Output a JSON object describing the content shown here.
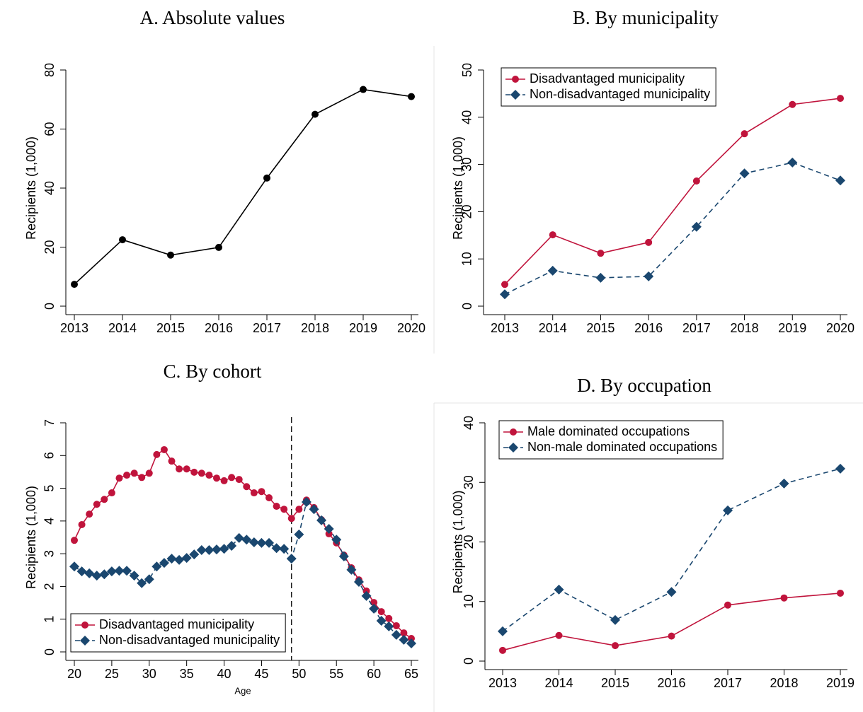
{
  "chart_data": [
    {
      "type": "line",
      "title": "A. Absolute values",
      "ylabel": "Recipients (1,000)",
      "x": [
        2013,
        2014,
        2015,
        2016,
        2017,
        2018,
        2019,
        2020
      ],
      "values": [
        7.4,
        22.5,
        17.3,
        19.9,
        43.4,
        65.0,
        73.4,
        71.0
      ],
      "color": "#000000",
      "marker": "circle",
      "linestyle": "solid",
      "xlim": [
        2013,
        2020
      ],
      "xticks": [
        2013,
        2014,
        2015,
        2016,
        2017,
        2018,
        2019,
        2020
      ],
      "ylim": [
        0,
        80
      ],
      "yticks": [
        0,
        20,
        40,
        60,
        80
      ]
    },
    {
      "type": "line",
      "title": "B. By municipality",
      "ylabel": "Recipients (1,000)",
      "x": [
        2013,
        2014,
        2015,
        2016,
        2017,
        2018,
        2019,
        2020
      ],
      "series": [
        {
          "name": "Disadvantaged municipality",
          "color": "#c0143c",
          "marker": "circle",
          "linestyle": "solid",
          "values": [
            4.6,
            15.1,
            11.2,
            13.5,
            26.5,
            36.5,
            42.7,
            44.0
          ]
        },
        {
          "name": "Non-disadvantaged municipality",
          "color": "#1a476f",
          "marker": "diamond",
          "linestyle": "dashed",
          "values": [
            2.5,
            7.5,
            6.0,
            6.3,
            16.8,
            28.1,
            30.4,
            26.6
          ]
        }
      ],
      "xlim": [
        2013,
        2020
      ],
      "xticks": [
        2013,
        2014,
        2015,
        2016,
        2017,
        2018,
        2019,
        2020
      ],
      "ylim": [
        0,
        50
      ],
      "yticks": [
        0,
        10,
        20,
        30,
        40,
        50
      ],
      "legend": "top-left"
    },
    {
      "type": "line",
      "title": "C. By cohort",
      "ylabel": "Recipients (1,000)",
      "xlabel": "Age",
      "x": [
        20,
        21,
        22,
        23,
        24,
        25,
        26,
        27,
        28,
        29,
        30,
        31,
        32,
        33,
        34,
        35,
        36,
        37,
        38,
        39,
        40,
        41,
        42,
        43,
        44,
        45,
        46,
        47,
        48,
        49,
        50,
        51,
        52,
        53,
        54,
        55,
        56,
        57,
        58,
        59,
        60,
        61,
        62,
        63,
        64,
        65
      ],
      "series": [
        {
          "name": "Disadvantaged municipality",
          "color": "#c0143c",
          "marker": "circle",
          "linestyle": "solid",
          "values": [
            3.41,
            3.89,
            4.21,
            4.51,
            4.66,
            4.86,
            5.31,
            5.4,
            5.46,
            5.33,
            5.46,
            6.03,
            6.18,
            5.83,
            5.59,
            5.59,
            5.49,
            5.46,
            5.4,
            5.31,
            5.23,
            5.33,
            5.27,
            5.05,
            4.86,
            4.9,
            4.71,
            4.45,
            4.36,
            4.08,
            4.36,
            4.64,
            4.41,
            4.04,
            3.61,
            3.33,
            2.96,
            2.57,
            2.2,
            1.86,
            1.51,
            1.23,
            1.02,
            0.8,
            0.58,
            0.41
          ]
        },
        {
          "name": "Non-disadvantaged municipality",
          "color": "#1a476f",
          "marker": "diamond",
          "linestyle": "dashed",
          "values": [
            2.61,
            2.46,
            2.4,
            2.33,
            2.37,
            2.46,
            2.48,
            2.48,
            2.33,
            2.1,
            2.22,
            2.61,
            2.72,
            2.85,
            2.81,
            2.87,
            2.98,
            3.11,
            3.11,
            3.13,
            3.15,
            3.24,
            3.48,
            3.43,
            3.35,
            3.33,
            3.33,
            3.17,
            3.15,
            2.85,
            3.59,
            4.58,
            4.36,
            4.02,
            3.76,
            3.43,
            2.92,
            2.51,
            2.14,
            1.71,
            1.32,
            0.95,
            0.78,
            0.52,
            0.37,
            0.26
          ]
        }
      ],
      "xlim": [
        20,
        65
      ],
      "xticks": [
        20,
        25,
        30,
        35,
        40,
        45,
        50,
        55,
        60,
        65
      ],
      "ylim": [
        0,
        7
      ],
      "yticks": [
        0,
        1,
        2,
        3,
        4,
        5,
        6,
        7
      ],
      "legend": "bottom-left",
      "vline": 49
    },
    {
      "type": "line",
      "title": "D. By occupation",
      "ylabel": "Recipients (1,000)",
      "x": [
        2013,
        2014,
        2015,
        2016,
        2017,
        2018,
        2019
      ],
      "series": [
        {
          "name": "Male dominated occupations",
          "color": "#c0143c",
          "marker": "circle",
          "linestyle": "solid",
          "values": [
            1.8,
            4.3,
            2.6,
            4.2,
            9.4,
            10.6,
            11.4
          ]
        },
        {
          "name": "Non-male dominated occupations",
          "color": "#1a476f",
          "marker": "diamond",
          "linestyle": "dashed",
          "values": [
            5.0,
            12.0,
            6.9,
            11.6,
            25.3,
            29.8,
            32.3
          ]
        }
      ],
      "xlim": [
        2013,
        2019
      ],
      "xticks": [
        2013,
        2014,
        2015,
        2016,
        2017,
        2018,
        2019
      ],
      "ylim": [
        0,
        40
      ],
      "yticks": [
        0,
        10,
        20,
        30,
        40
      ],
      "legend": "top-left"
    }
  ]
}
